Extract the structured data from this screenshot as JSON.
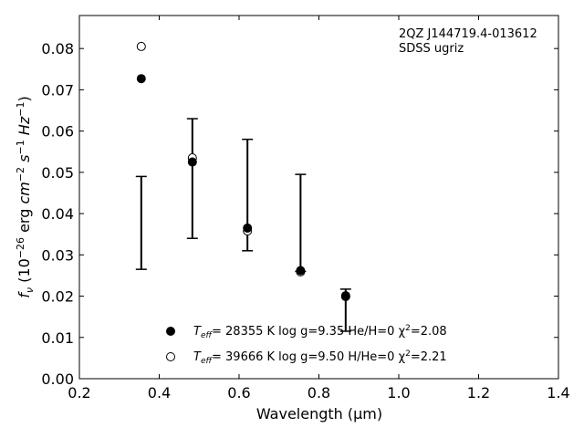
{
  "chart_data": {
    "type": "scatter",
    "annotation": [
      "2QZ J144719.4-013612",
      "SDSS ugriz"
    ],
    "xlabel": "Wavelength (μm)",
    "ylabel": "f_ν (10^-26 erg cm^-2 s^-1 Hz^-1)",
    "xlim": [
      0.2,
      1.4
    ],
    "ylim": [
      0.0,
      0.088
    ],
    "xticks": [
      0.2,
      0.4,
      0.6,
      0.8,
      1.0,
      1.2,
      1.4
    ],
    "xtick_labels": [
      "0.2",
      "0.4",
      "0.6",
      "0.8",
      "1.0",
      "1.2",
      "1.4"
    ],
    "yticks": [
      0.0,
      0.01,
      0.02,
      0.03,
      0.04,
      0.05,
      0.06,
      0.07,
      0.08
    ],
    "ytick_labels": [
      "0.00",
      "0.01",
      "0.02",
      "0.03",
      "0.04",
      "0.05",
      "0.06",
      "0.07",
      "0.08"
    ],
    "grid": false,
    "legend_position": "bottom-center",
    "observed": {
      "x": [
        0.355,
        0.483,
        0.621,
        0.754,
        0.867
      ],
      "yerr_low": [
        0.0265,
        0.034,
        0.031,
        0.026,
        0.0115
      ],
      "yerr_high": [
        0.049,
        0.063,
        0.058,
        0.0495,
        0.0217
      ]
    },
    "series": [
      {
        "marker": "filled-circle",
        "x": [
          0.355,
          0.483,
          0.621,
          0.754,
          0.867
        ],
        "y": [
          0.0727,
          0.0525,
          0.0365,
          0.0262,
          0.0201
        ],
        "legend": {
          "teff_label": "T",
          "teff_sub": "eff",
          "text": "= 28355 K  log g=9.35  He/H=0  χ",
          "chi_sup": "2",
          "chi_val": "=2.08"
        }
      },
      {
        "marker": "open-circle",
        "x": [
          0.355,
          0.483,
          0.621,
          0.754,
          0.867
        ],
        "y": [
          0.0805,
          0.0535,
          0.0358,
          0.0259,
          0.0199
        ],
        "legend": {
          "teff_label": "T",
          "teff_sub": "eff",
          "text": "= 39666 K  log g=9.50  H/He=0  χ",
          "chi_sup": "2",
          "chi_val": "=2.21"
        }
      }
    ]
  }
}
